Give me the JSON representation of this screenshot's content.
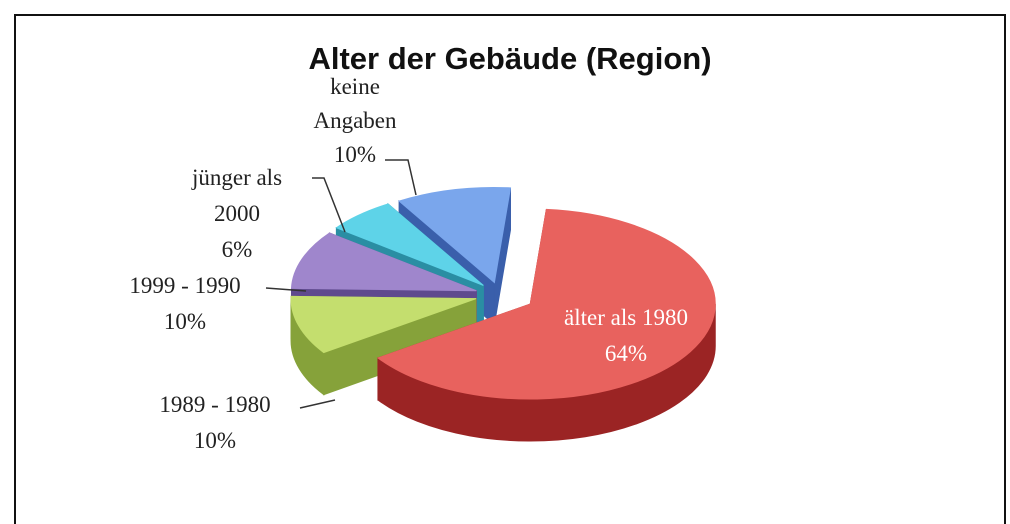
{
  "chart_data": {
    "type": "pie",
    "title": "Alter der Gebäude (Region)",
    "categories": [
      "älter als 1980",
      "1989 - 1980",
      "1999 - 1990",
      "jünger als 2000",
      "keine Angaben"
    ],
    "values": [
      64,
      10,
      10,
      6,
      10
    ],
    "value_labels": [
      "64%",
      "10%",
      "10%",
      "6%",
      "10%"
    ],
    "colors": [
      "#e8625e",
      "#c4de6e",
      "#9f86cc",
      "#5ed3e8",
      "#7aa6ec"
    ],
    "side_colors": [
      "#9b2424",
      "#86a23a",
      "#5f4a8e",
      "#2a8ea3",
      "#3a5fab"
    ]
  }
}
